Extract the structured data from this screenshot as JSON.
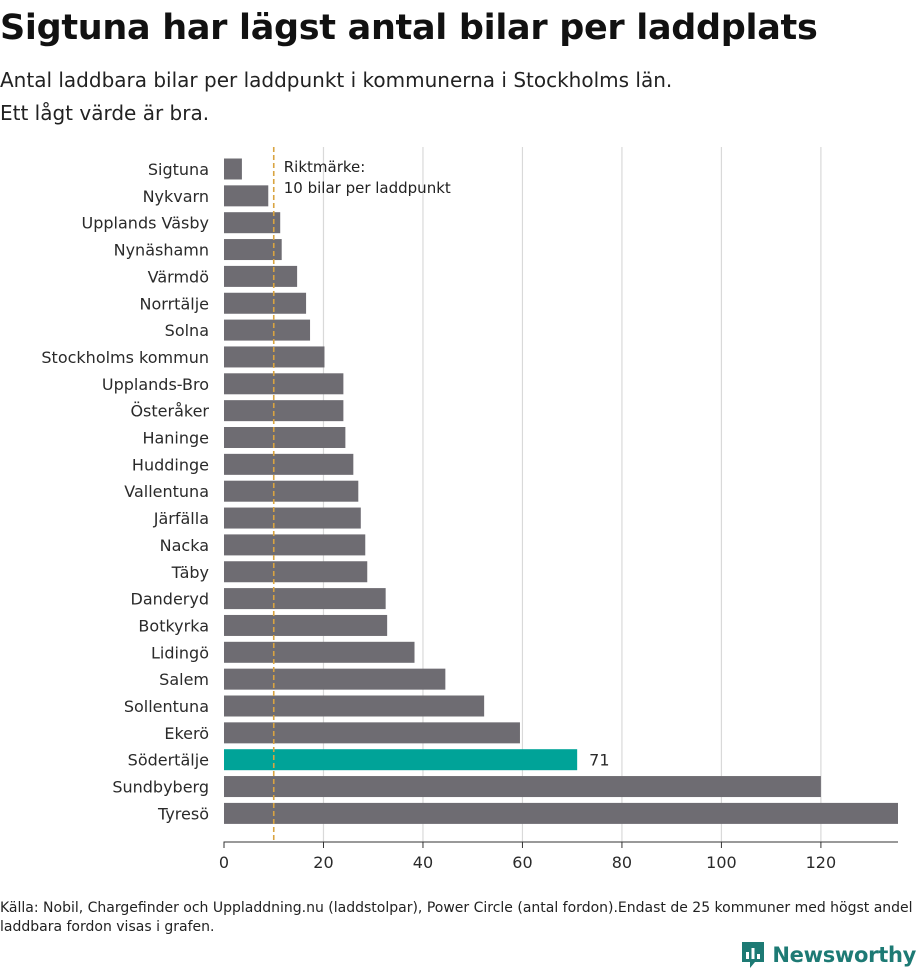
{
  "header": {
    "title": "Sigtuna har lägst antal bilar per laddplats",
    "subtitle_line1": "Antal laddbara bilar per laddpunkt i kommunerna i Stockholms län.",
    "subtitle_line2": "Ett lågt värde är bra."
  },
  "chart_data": {
    "type": "bar",
    "orientation": "horizontal",
    "categories": [
      "Sigtuna",
      "Nykvarn",
      "Upplands Väsby",
      "Nynäshamn",
      "Värmdö",
      "Norrtälje",
      "Solna",
      "Stockholms kommun",
      "Upplands-Bro",
      "Österåker",
      "Haninge",
      "Huddinge",
      "Vallentuna",
      "Järfälla",
      "Nacka",
      "Täby",
      "Danderyd",
      "Botkyrka",
      "Lidingö",
      "Salem",
      "Sollentuna",
      "Ekerö",
      "Södertälje",
      "Sundbyberg",
      "Tyresö"
    ],
    "values": [
      3.6,
      8.9,
      11.3,
      11.6,
      14.7,
      16.5,
      17.3,
      20.2,
      24.0,
      24.0,
      24.4,
      26.0,
      27.0,
      27.5,
      28.4,
      28.8,
      32.5,
      32.8,
      38.3,
      44.5,
      52.3,
      59.5,
      71,
      120,
      135.5
    ],
    "highlight": {
      "category": "Södertälje",
      "color": "#00a398",
      "label": "71"
    },
    "bar_color": "#6e6c72",
    "xlim": [
      0,
      135.5
    ],
    "xticks": [
      0,
      20,
      40,
      60,
      80,
      100,
      120
    ],
    "grid": true,
    "reference_line": {
      "value": 10,
      "color": "#d9a441",
      "label_line1": "Riktmärke:",
      "label_line2": "10 bilar per laddpunkt"
    }
  },
  "footer": {
    "source": "Källa: Nobil, Chargefinder och Uppladdning.nu (laddstolpar), Power Circle (antal fordon).Endast de 25 kommuner med högst andel laddbara fordon visas i grafen."
  },
  "logo": {
    "text": "Newsworthy",
    "color": "#1d7a74"
  }
}
